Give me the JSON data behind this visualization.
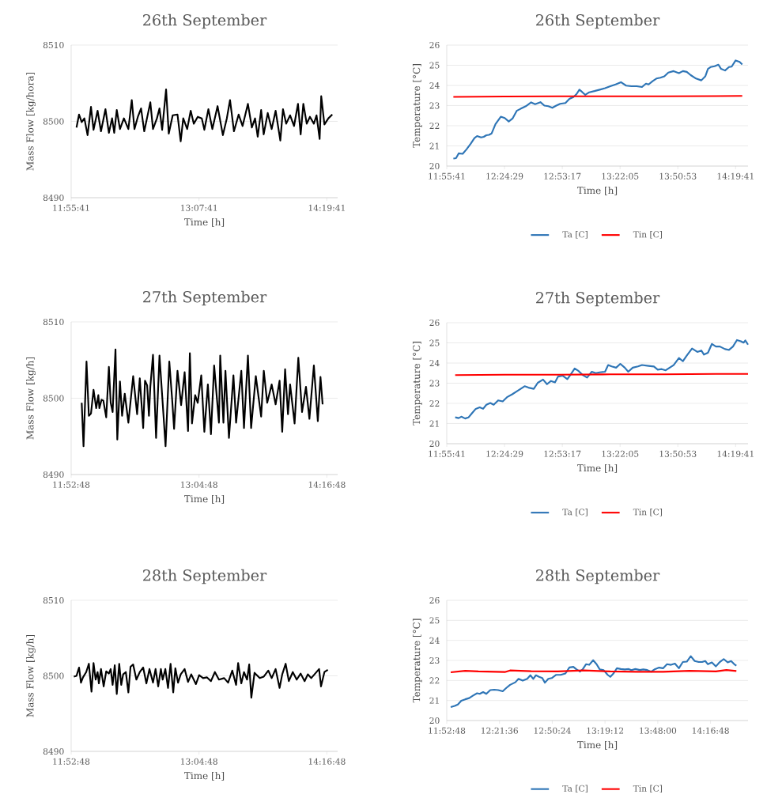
{
  "chart_data": [
    {
      "type": "line",
      "title": "26th September",
      "xlabel": "Time [h]",
      "ylabel": "Mass Flow [kg/hora]",
      "xlim": [
        11.928,
        14.429
      ],
      "ylim": [
        8490,
        8510
      ],
      "xticks": [
        {
          "value": 11.928,
          "label": "11:55:41"
        },
        {
          "value": 13.128,
          "label": "13:07:41"
        },
        {
          "value": 14.328,
          "label": "14:19:41"
        }
      ],
      "yticks": [
        8490,
        8500,
        8510
      ],
      "grid": "y",
      "x": [
        11.978,
        12.002,
        12.027,
        12.052,
        12.082,
        12.114,
        12.138,
        12.176,
        12.208,
        12.25,
        12.282,
        12.312,
        12.332,
        12.356,
        12.386,
        12.423,
        12.465,
        12.497,
        12.522,
        12.554,
        12.584,
        12.614,
        12.671,
        12.696,
        12.733,
        12.757,
        12.782,
        12.819,
        12.844,
        12.881,
        12.926,
        12.956,
        12.98,
        13.017,
        13.05,
        13.079,
        13.116,
        13.154,
        13.178,
        13.216,
        13.253,
        13.302,
        13.352,
        13.389,
        13.419,
        13.456,
        13.5,
        13.537,
        13.587,
        13.624,
        13.654,
        13.679,
        13.711,
        13.735,
        13.773,
        13.81,
        13.847,
        13.891,
        13.916,
        13.946,
        13.983,
        14.02,
        14.057,
        14.082,
        14.107,
        14.139,
        14.169,
        14.206,
        14.231,
        14.26,
        14.275,
        14.305,
        14.342,
        14.379
      ],
      "series": [
        {
          "color": "#000000",
          "values": [
            8499.2,
            8500.9,
            8499.9,
            8500.4,
            8498.2,
            8501.9,
            8498.9,
            8501.4,
            8498.7,
            8501.6,
            8498.5,
            8500.4,
            8498.5,
            8501.5,
            8499.0,
            8500.4,
            8499.0,
            8502.8,
            8499.0,
            8500.6,
            8501.7,
            8498.7,
            8502.5,
            8499.0,
            8500.4,
            8501.7,
            8498.9,
            8504.2,
            8498.4,
            8500.8,
            8500.9,
            8497.4,
            8500.4,
            8499.0,
            8501.4,
            8499.7,
            8500.6,
            8500.4,
            8498.9,
            8501.6,
            8499.0,
            8502.0,
            8498.2,
            8500.4,
            8502.8,
            8498.7,
            8500.9,
            8499.4,
            8502.3,
            8499.2,
            8500.4,
            8498.0,
            8501.5,
            8498.3,
            8501.1,
            8499.0,
            8501.4,
            8497.5,
            8501.6,
            8499.7,
            8500.8,
            8499.4,
            8502.3,
            8498.3,
            8502.3,
            8499.7,
            8500.6,
            8499.7,
            8500.8,
            8497.7,
            8503.3,
            8499.6,
            8500.4,
            8500.9
          ]
        }
      ]
    },
    {
      "type": "line",
      "title": "26th September",
      "xlabel": "Time [h]",
      "ylabel": "Temperature [°C]",
      "xlim": [
        11.928,
        14.431
      ],
      "ylim": [
        20,
        26
      ],
      "xticks": [
        {
          "value": 11.928,
          "label": "11:55:41"
        },
        {
          "value": 12.408,
          "label": "12:24:29"
        },
        {
          "value": 12.888,
          "label": "12:53:17"
        },
        {
          "value": 13.368,
          "label": "13:22:05"
        },
        {
          "value": 13.848,
          "label": "13:50:53"
        },
        {
          "value": 14.328,
          "label": "14:19:41"
        }
      ],
      "yticks": [
        20,
        21,
        22,
        23,
        24,
        25,
        26
      ],
      "grid": "y",
      "legend": "bottom",
      "series": [
        {
          "name": "Ta [C]",
          "color": "#2e75b6",
          "x": [
            11.983,
            12.005,
            12.027,
            12.06,
            12.092,
            12.125,
            12.158,
            12.18,
            12.213,
            12.235,
            12.257,
            12.279,
            12.301,
            12.333,
            12.377,
            12.41,
            12.443,
            12.476,
            12.509,
            12.541,
            12.585,
            12.629,
            12.662,
            12.706,
            12.739,
            12.772,
            12.805,
            12.838,
            12.87,
            12.914,
            12.947,
            12.98,
            13.006,
            13.03,
            13.052,
            13.079,
            13.112,
            13.155,
            13.199,
            13.243,
            13.287,
            13.331,
            13.375,
            13.418,
            13.462,
            13.506,
            13.55,
            13.583,
            13.605,
            13.638,
            13.67,
            13.703,
            13.736,
            13.769,
            13.813,
            13.857,
            13.89,
            13.922,
            13.955,
            13.999,
            14.043,
            14.076,
            14.098,
            14.12,
            14.153,
            14.185,
            14.207,
            14.24,
            14.273,
            14.295,
            14.328,
            14.361,
            14.383
          ],
          "values": [
            20.37,
            20.39,
            20.63,
            20.61,
            20.83,
            21.09,
            21.39,
            21.49,
            21.42,
            21.45,
            21.53,
            21.55,
            21.62,
            22.08,
            22.45,
            22.38,
            22.21,
            22.37,
            22.74,
            22.84,
            22.97,
            23.16,
            23.07,
            23.17,
            23.0,
            22.97,
            22.89,
            23.0,
            23.09,
            23.13,
            23.33,
            23.42,
            23.57,
            23.79,
            23.68,
            23.53,
            23.66,
            23.72,
            23.79,
            23.86,
            23.96,
            24.05,
            24.16,
            23.99,
            23.96,
            23.96,
            23.92,
            24.09,
            24.05,
            24.21,
            24.34,
            24.38,
            24.45,
            24.64,
            24.71,
            24.61,
            24.71,
            24.67,
            24.51,
            24.34,
            24.25,
            24.45,
            24.82,
            24.91,
            24.95,
            25.03,
            24.82,
            24.74,
            24.91,
            24.93,
            25.24,
            25.17,
            25.04
          ]
        },
        {
          "name": "Tin [C]",
          "color": "#ff0000",
          "x": [
            11.983,
            12.41,
            12.848,
            13.287,
            13.725,
            14.163,
            14.383
          ],
          "values": [
            23.43,
            23.45,
            23.46,
            23.46,
            23.46,
            23.47,
            23.48
          ]
        }
      ]
    },
    {
      "type": "line",
      "title": "27th September",
      "xlabel": "Time [h]",
      "ylabel": "Mass Flow [kg/h]",
      "xlim": [
        11.88,
        14.381
      ],
      "ylim": [
        8490,
        8510
      ],
      "xticks": [
        {
          "value": 11.88,
          "label": "11:52:48"
        },
        {
          "value": 13.08,
          "label": "13:04:48"
        },
        {
          "value": 14.28,
          "label": "14:16:48"
        }
      ],
      "yticks": [
        8490,
        8500,
        8510
      ],
      "grid": "y",
      "x": [
        11.979,
        11.996,
        12.024,
        12.046,
        12.066,
        12.09,
        12.115,
        12.135,
        12.145,
        12.165,
        12.182,
        12.209,
        12.234,
        12.251,
        12.269,
        12.296,
        12.313,
        12.338,
        12.358,
        12.383,
        12.417,
        12.462,
        12.499,
        12.524,
        12.556,
        12.573,
        12.593,
        12.61,
        12.623,
        12.648,
        12.677,
        12.709,
        12.766,
        12.801,
        12.828,
        12.846,
        12.878,
        12.912,
        12.945,
        12.977,
        12.994,
        13.014,
        13.044,
        13.068,
        13.101,
        13.13,
        13.163,
        13.192,
        13.222,
        13.267,
        13.279,
        13.309,
        13.328,
        13.361,
        13.403,
        13.428,
        13.477,
        13.502,
        13.539,
        13.569,
        13.613,
        13.663,
        13.688,
        13.72,
        13.762,
        13.799,
        13.836,
        13.861,
        13.888,
        13.915,
        13.935,
        13.977,
        14.012,
        14.047,
        14.084,
        14.116,
        14.158,
        14.195,
        14.22,
        14.24
      ],
      "series": [
        {
          "color": "#000000",
          "values": [
            8499.4,
            8493.7,
            8504.8,
            8497.7,
            8498.0,
            8501.1,
            8498.7,
            8500.4,
            8498.7,
            8499.8,
            8499.7,
            8497.5,
            8504.1,
            8499.4,
            8498.2,
            8506.4,
            8494.6,
            8502.2,
            8497.7,
            8500.6,
            8496.8,
            8502.9,
            8497.9,
            8502.6,
            8496.1,
            8502.3,
            8501.7,
            8497.7,
            8501.5,
            8505.7,
            8494.8,
            8505.6,
            8493.7,
            8504.8,
            8499.8,
            8496.0,
            8503.6,
            8499.1,
            8503.4,
            8495.7,
            8505.9,
            8496.7,
            8500.4,
            8499.4,
            8503.0,
            8495.6,
            8501.8,
            8495.3,
            8504.3,
            8496.8,
            8505.6,
            8496.8,
            8503.6,
            8494.8,
            8503.0,
            8496.8,
            8503.6,
            8496.1,
            8505.6,
            8496.1,
            8502.9,
            8497.6,
            8503.6,
            8499.4,
            8501.8,
            8499.2,
            8502.3,
            8495.6,
            8503.8,
            8497.9,
            8501.8,
            8496.7,
            8505.3,
            8498.2,
            8501.5,
            8497.3,
            8504.3,
            8497.0,
            8502.8,
            8499.2
          ]
        }
      ]
    },
    {
      "type": "line",
      "title": "27th September",
      "xlabel": "Time [h]",
      "ylabel": "Temperature [°C]",
      "xlim": [
        11.928,
        14.431
      ],
      "ylim": [
        20,
        26
      ],
      "xticks": [
        {
          "value": 11.928,
          "label": "11:55:41"
        },
        {
          "value": 12.408,
          "label": "12:24:29"
        },
        {
          "value": 12.888,
          "label": "12:53:17"
        },
        {
          "value": 13.368,
          "label": "13:22:05"
        },
        {
          "value": 13.848,
          "label": "13:50:53"
        },
        {
          "value": 14.328,
          "label": "14:19:41"
        }
      ],
      "yticks": [
        20,
        21,
        22,
        23,
        24,
        25,
        26
      ],
      "grid": "y",
      "legend": "bottom",
      "series": [
        {
          "name": "Ta [C]",
          "color": "#2e75b6",
          "x": [
            11.998,
            12.027,
            12.049,
            12.081,
            12.108,
            12.136,
            12.169,
            12.202,
            12.23,
            12.257,
            12.29,
            12.318,
            12.355,
            12.393,
            12.432,
            12.472,
            12.509,
            12.542,
            12.575,
            12.607,
            12.651,
            12.684,
            12.728,
            12.761,
            12.794,
            12.827,
            12.853,
            12.892,
            12.93,
            12.958,
            12.991,
            13.024,
            13.057,
            13.094,
            13.133,
            13.166,
            13.199,
            13.243,
            13.269,
            13.298,
            13.335,
            13.37,
            13.407,
            13.436,
            13.473,
            13.517,
            13.55,
            13.605,
            13.649,
            13.681,
            13.714,
            13.747,
            13.78,
            13.813,
            13.857,
            13.89,
            13.923,
            13.966,
            14.01,
            14.043,
            14.065,
            14.098,
            14.131,
            14.164,
            14.197,
            14.24,
            14.273,
            14.306,
            14.339,
            14.372,
            14.394,
            14.409,
            14.431
          ],
          "values": [
            21.31,
            21.27,
            21.34,
            21.25,
            21.3,
            21.5,
            21.73,
            21.8,
            21.73,
            21.93,
            22.02,
            21.93,
            22.15,
            22.1,
            22.32,
            22.45,
            22.59,
            22.72,
            22.85,
            22.78,
            22.72,
            23.02,
            23.18,
            22.95,
            23.11,
            23.04,
            23.33,
            23.37,
            23.2,
            23.44,
            23.73,
            23.6,
            23.41,
            23.28,
            23.57,
            23.5,
            23.54,
            23.57,
            23.9,
            23.83,
            23.77,
            23.96,
            23.77,
            23.57,
            23.77,
            23.83,
            23.9,
            23.86,
            23.83,
            23.67,
            23.7,
            23.64,
            23.77,
            23.9,
            24.25,
            24.09,
            24.38,
            24.72,
            24.55,
            24.62,
            24.42,
            24.51,
            24.95,
            24.82,
            24.82,
            24.69,
            24.65,
            24.82,
            25.14,
            25.08,
            25.01,
            25.12,
            24.91
          ]
        },
        {
          "name": "Tin [C]",
          "color": "#ff0000",
          "x": [
            11.998,
            12.41,
            12.848,
            13.287,
            13.725,
            14.164,
            14.431
          ],
          "values": [
            23.4,
            23.42,
            23.42,
            23.44,
            23.44,
            23.46,
            23.46
          ]
        }
      ]
    },
    {
      "type": "line",
      "title": "28th September",
      "xlabel": "Time [h]",
      "ylabel": "Mass Flow [kg/h]",
      "xlim": [
        11.88,
        14.381
      ],
      "ylim": [
        8490,
        8510
      ],
      "xticks": [
        {
          "value": 11.88,
          "label": "11:52:48"
        },
        {
          "value": 13.08,
          "label": "13:04:48"
        },
        {
          "value": 14.28,
          "label": "14:16:48"
        }
      ],
      "yticks": [
        8490,
        8500,
        8510
      ],
      "grid": "y",
      "x": [
        11.905,
        11.93,
        11.954,
        11.972,
        11.991,
        12.021,
        12.046,
        12.071,
        12.09,
        12.11,
        12.128,
        12.14,
        12.16,
        12.185,
        12.209,
        12.234,
        12.251,
        12.269,
        12.289,
        12.308,
        12.331,
        12.35,
        12.368,
        12.393,
        12.417,
        12.437,
        12.462,
        12.492,
        12.524,
        12.556,
        12.586,
        12.615,
        12.648,
        12.672,
        12.697,
        12.722,
        12.739,
        12.764,
        12.789,
        12.813,
        12.838,
        12.858,
        12.883,
        12.908,
        12.945,
        12.977,
        13.007,
        13.051,
        13.081,
        13.118,
        13.155,
        13.192,
        13.229,
        13.267,
        13.316,
        13.353,
        13.392,
        13.428,
        13.447,
        13.477,
        13.502,
        13.531,
        13.551,
        13.571,
        13.601,
        13.65,
        13.688,
        13.73,
        13.762,
        13.799,
        13.836,
        13.861,
        13.893,
        13.923,
        13.96,
        13.997,
        14.034,
        14.071,
        14.101,
        14.133,
        14.17,
        14.207,
        14.225,
        14.257,
        14.289
      ],
      "series": [
        {
          "color": "#000000",
          "values": [
            8499.9,
            8500.0,
            8501.1,
            8499.1,
            8499.8,
            8500.5,
            8501.6,
            8497.9,
            8501.7,
            8499.5,
            8500.5,
            8499.0,
            8500.9,
            8498.6,
            8500.6,
            8500.3,
            8500.9,
            8498.8,
            8501.4,
            8497.6,
            8501.6,
            8498.8,
            8500.2,
            8500.5,
            8497.8,
            8501.2,
            8501.5,
            8499.5,
            8500.5,
            8501.1,
            8499.0,
            8500.9,
            8499.1,
            8500.9,
            8498.6,
            8500.9,
            8499.5,
            8500.9,
            8498.4,
            8501.6,
            8497.8,
            8501.0,
            8499.1,
            8500.2,
            8500.9,
            8499.2,
            8500.2,
            8498.9,
            8500.1,
            8499.7,
            8499.8,
            8499.3,
            8500.5,
            8499.5,
            8499.7,
            8499.1,
            8500.7,
            8498.8,
            8501.7,
            8499.0,
            8500.5,
            8499.5,
            8501.5,
            8497.1,
            8500.4,
            8499.7,
            8499.9,
            8500.7,
            8499.7,
            8500.9,
            8498.4,
            8500.2,
            8501.6,
            8499.3,
            8500.5,
            8499.5,
            8500.3,
            8499.3,
            8500.2,
            8499.7,
            8500.3,
            8500.9,
            8498.6,
            8500.5,
            8500.8
          ]
        }
      ]
    },
    {
      "type": "line",
      "title": "28th September",
      "xlabel": "Time [h]",
      "ylabel": "Temperature [°C]",
      "xlim": [
        11.88,
        14.621
      ],
      "ylim": [
        20,
        26
      ],
      "xticks": [
        {
          "value": 11.88,
          "label": "11:52:48"
        },
        {
          "value": 12.36,
          "label": "12:21:36"
        },
        {
          "value": 12.84,
          "label": "12:50:24"
        },
        {
          "value": 13.32,
          "label": "13:19:12"
        },
        {
          "value": 13.8,
          "label": "13:48:00"
        },
        {
          "value": 14.28,
          "label": "14:16:48"
        }
      ],
      "yticks": [
        20,
        21,
        22,
        23,
        24,
        25,
        26
      ],
      "grid": "y",
      "legend": "bottom",
      "series": [
        {
          "name": "Ta [C]",
          "color": "#2e75b6",
          "x": [
            11.916,
            11.952,
            11.981,
            12.012,
            12.048,
            12.084,
            12.12,
            12.156,
            12.18,
            12.211,
            12.24,
            12.276,
            12.312,
            12.348,
            12.389,
            12.42,
            12.456,
            12.504,
            12.533,
            12.571,
            12.612,
            12.641,
            12.667,
            12.691,
            12.72,
            12.749,
            12.773,
            12.804,
            12.835,
            12.876,
            12.917,
            12.96,
            12.996,
            13.032,
            13.061,
            13.092,
            13.116,
            13.147,
            13.176,
            13.212,
            13.243,
            13.272,
            13.308,
            13.344,
            13.368,
            13.397,
            13.428,
            13.464,
            13.5,
            13.536,
            13.56,
            13.596,
            13.637,
            13.668,
            13.704,
            13.74,
            13.776,
            13.812,
            13.848,
            13.884,
            13.92,
            13.956,
            13.992,
            14.028,
            14.064,
            14.1,
            14.136,
            14.172,
            14.203,
            14.232,
            14.256,
            14.292,
            14.328,
            14.364,
            14.4,
            14.436,
            14.467,
            14.496,
            14.515
          ],
          "values": [
            20.67,
            20.73,
            20.8,
            20.99,
            21.06,
            21.12,
            21.25,
            21.36,
            21.33,
            21.42,
            21.33,
            21.52,
            21.54,
            21.52,
            21.46,
            21.62,
            21.78,
            21.91,
            22.08,
            21.99,
            22.08,
            22.26,
            22.08,
            22.26,
            22.18,
            22.12,
            21.89,
            22.08,
            22.12,
            22.28,
            22.28,
            22.35,
            22.65,
            22.68,
            22.55,
            22.44,
            22.55,
            22.81,
            22.78,
            23.01,
            22.81,
            22.55,
            22.51,
            22.28,
            22.18,
            22.35,
            22.61,
            22.57,
            22.55,
            22.57,
            22.52,
            22.57,
            22.52,
            22.55,
            22.52,
            22.44,
            22.57,
            22.64,
            22.61,
            22.81,
            22.78,
            22.84,
            22.61,
            22.92,
            22.94,
            23.21,
            22.97,
            22.92,
            22.92,
            22.97,
            22.81,
            22.9,
            22.7,
            22.92,
            23.07,
            22.9,
            22.97,
            22.81,
            22.74
          ]
        },
        {
          "name": "Tin [C]",
          "color": "#ff0000",
          "x": [
            11.916,
            12.048,
            12.168,
            12.408,
            12.456,
            12.648,
            12.888,
            13.128,
            13.368,
            13.608,
            13.848,
            14.088,
            14.328,
            14.424,
            14.515
          ],
          "values": [
            22.41,
            22.48,
            22.45,
            22.42,
            22.5,
            22.46,
            22.45,
            22.5,
            22.45,
            22.43,
            22.43,
            22.48,
            22.45,
            22.52,
            22.47
          ]
        }
      ]
    }
  ]
}
